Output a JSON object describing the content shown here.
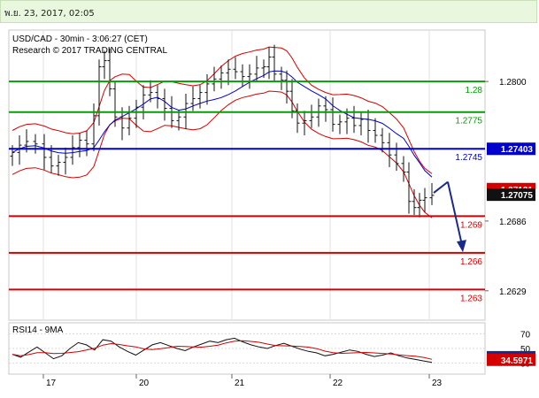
{
  "header": {
    "timestamp": "พ.ย. 23, 2017, 02:05"
  },
  "chart_data": {
    "type": "candlestick",
    "title": "USD/CAD - 30min - 3:06:27 (CET)",
    "subtitle": "Research © 2017 TRADING CENTRAL",
    "y_ticks": [
      "1.2800",
      "1.2686",
      "1.2629"
    ],
    "y_tick_values": [
      1.28,
      1.2686,
      1.2629
    ],
    "price_box": {
      "high": "1.27121",
      "current": "1.27075"
    },
    "x_ticks": [
      "17",
      "20",
      "21",
      "22",
      "23"
    ],
    "levels": [
      {
        "value": 1.28,
        "label": "1.28",
        "color": "#0a9a0a",
        "type": "resistance"
      },
      {
        "value": 1.2775,
        "label": "1.2775",
        "color": "#0a9a0a",
        "type": "resistance"
      },
      {
        "value": 1.2745,
        "label": "1.2745",
        "color": "#0000cc",
        "type": "pivot"
      },
      {
        "value": 1.269,
        "label": "1.269",
        "color": "#d40000",
        "type": "support"
      },
      {
        "value": 1.266,
        "label": "1.266",
        "color": "#d40000",
        "type": "support"
      },
      {
        "value": 1.263,
        "label": "1.263",
        "color": "#d40000",
        "type": "support"
      }
    ],
    "pivot_value_box": "1.27403",
    "projection": {
      "from": 1.2718,
      "to": 1.2662
    },
    "ylim": [
      1.2605,
      1.2842
    ],
    "rsi": {
      "title": "RSI14 - 9MA",
      "ticks": [
        "70",
        "50",
        "30"
      ],
      "tick_values": [
        70,
        50,
        30
      ],
      "value_box": "38.0314",
      "ma_box": "34.5971",
      "ylim": [
        15,
        85
      ]
    }
  }
}
